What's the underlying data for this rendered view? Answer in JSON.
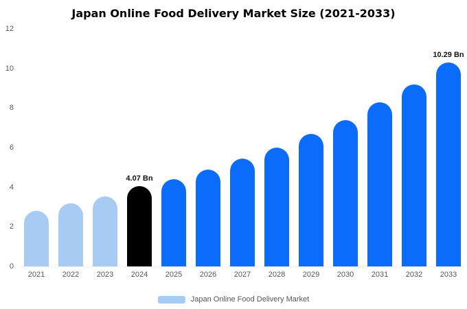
{
  "chart_data": {
    "type": "bar",
    "title": "Japan Online Food Delivery Market Size (2021-2033)",
    "categories": [
      "2021",
      "2022",
      "2023",
      "2024",
      "2025",
      "2026",
      "2027",
      "2028",
      "2029",
      "2030",
      "2031",
      "2032",
      "2033"
    ],
    "values": [
      2.8,
      3.2,
      3.55,
      4.07,
      4.4,
      4.9,
      5.45,
      6.0,
      6.7,
      7.4,
      8.3,
      9.2,
      10.29
    ],
    "bar_colors": [
      "#A7CBF3",
      "#A7CBF3",
      "#A7CBF3",
      "#000000",
      "#0B6BFA",
      "#0B6BFA",
      "#0B6BFA",
      "#0B6BFA",
      "#0B6BFA",
      "#0B6BFA",
      "#0B6BFA",
      "#0B6BFA",
      "#0B6BFA"
    ],
    "annotations": [
      {
        "index": 3,
        "text": "4.07 Bn"
      },
      {
        "index": 12,
        "text": "10.29 Bn"
      }
    ],
    "xlabel": "",
    "ylabel": "",
    "ylim": [
      0,
      12
    ],
    "yticks": [
      0,
      2,
      4,
      6,
      8,
      10,
      12
    ],
    "grid": false,
    "legend": {
      "label": "Japan Online Food Delivery Market",
      "swatch_color": "#A7CBF3",
      "position": "bottom"
    }
  }
}
